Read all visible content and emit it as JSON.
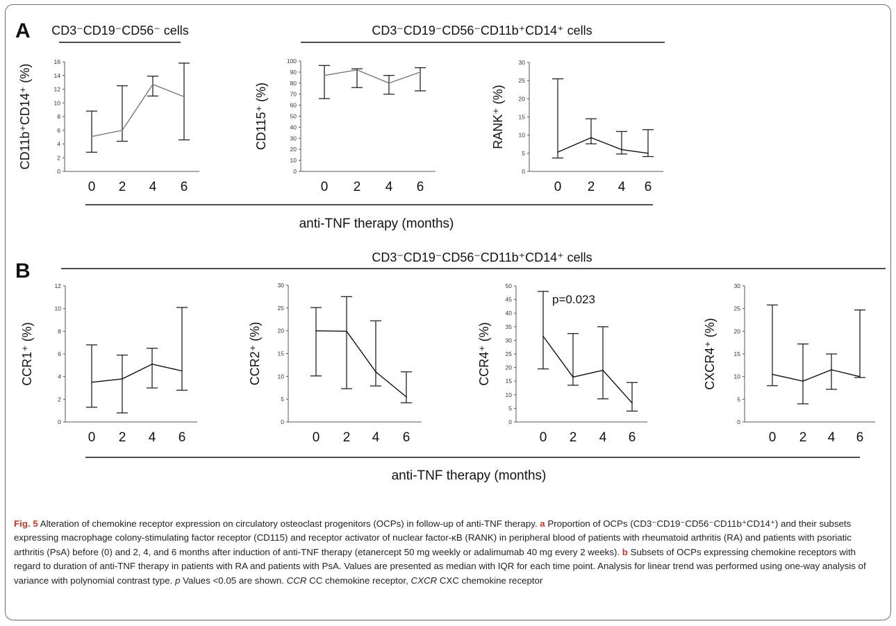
{
  "panels": {
    "a": {
      "letter": "A",
      "left_group_label": "CD3⁻CD19⁻CD56⁻ cells",
      "right_group_label": "CD3⁻CD19⁻CD56⁻CD11b⁺CD14⁺  cells",
      "xaxis_label": "anti-TNF therapy (months)"
    },
    "b": {
      "letter": "B",
      "group_label": "CD3⁻CD19⁻CD56⁻CD11b⁺CD14⁺  cells",
      "xaxis_label": "anti-TNF therapy (months)"
    }
  },
  "chart_data": [
    {
      "type": "line",
      "panel": "A",
      "ylabel": "CD11b⁺CD14⁺ (%)",
      "x": [
        0,
        2,
        4,
        6
      ],
      "xticks": [
        "0",
        "2",
        "4",
        "6"
      ],
      "ylim": [
        0,
        16
      ],
      "yticks": [
        0,
        2,
        4,
        6,
        8,
        10,
        12,
        14,
        16
      ],
      "median": [
        5.1,
        6.0,
        12.7,
        10.9
      ],
      "iqr_low": [
        2.8,
        4.4,
        11.0,
        4.6
      ],
      "iqr_high": [
        8.8,
        12.5,
        13.9,
        15.8
      ],
      "line_color": "#777777"
    },
    {
      "type": "line",
      "panel": "A",
      "ylabel": "CD115⁺ (%)",
      "x": [
        0,
        2,
        4,
        6
      ],
      "xticks": [
        "0",
        "2",
        "4",
        "6"
      ],
      "ylim": [
        0,
        100
      ],
      "yticks": [
        0,
        10,
        20,
        30,
        40,
        50,
        60,
        70,
        80,
        90,
        100
      ],
      "median": [
        87,
        92,
        80,
        90
      ],
      "iqr_low": [
        66,
        76,
        70,
        73
      ],
      "iqr_high": [
        96,
        93,
        87,
        94
      ],
      "line_color": "#777777"
    },
    {
      "type": "line",
      "panel": "A",
      "ylabel": "RANK⁺ (%)",
      "x": [
        0,
        2,
        4,
        6
      ],
      "xticks": [
        "0",
        "2",
        "4",
        "6"
      ],
      "ylim": [
        0,
        30
      ],
      "yticks": [
        0,
        5,
        10,
        15,
        20,
        25,
        30
      ],
      "median": [
        5.3,
        9.3,
        6.0,
        5.0
      ],
      "iqr_low": [
        3.7,
        7.6,
        4.8,
        4.1
      ],
      "iqr_high": [
        25.5,
        14.5,
        11.0,
        11.5
      ],
      "line_color": "#111111"
    },
    {
      "type": "line",
      "panel": "B",
      "ylabel": "CCR1⁺ (%)",
      "x": [
        0,
        2,
        4,
        6
      ],
      "xticks": [
        "0",
        "2",
        "4",
        "6"
      ],
      "ylim": [
        0,
        12
      ],
      "yticks": [
        0,
        2,
        4,
        6,
        8,
        10,
        12
      ],
      "median": [
        3.5,
        3.8,
        5.1,
        4.5
      ],
      "iqr_low": [
        1.3,
        0.8,
        3.0,
        2.8
      ],
      "iqr_high": [
        6.8,
        5.9,
        6.5,
        10.1
      ],
      "line_color": "#111111"
    },
    {
      "type": "line",
      "panel": "B",
      "ylabel": "CCR2⁺ (%)",
      "x": [
        0,
        2,
        4,
        6
      ],
      "xticks": [
        "0",
        "2",
        "4",
        "6"
      ],
      "ylim": [
        0,
        30
      ],
      "yticks": [
        0,
        5,
        10,
        15,
        20,
        25,
        30
      ],
      "median": [
        20.0,
        19.9,
        11.0,
        5.5
      ],
      "iqr_low": [
        10.1,
        7.3,
        7.9,
        4.2
      ],
      "iqr_high": [
        25.1,
        27.5,
        22.2,
        11.0
      ],
      "line_color": "#111111"
    },
    {
      "type": "line",
      "panel": "B",
      "ylabel": "CCR4⁺ (%)",
      "annotation": "p=0.023",
      "x": [
        0,
        2,
        4,
        6
      ],
      "xticks": [
        "0",
        "2",
        "4",
        "6"
      ],
      "ylim": [
        0,
        50
      ],
      "yticks": [
        0,
        5,
        10,
        15,
        20,
        25,
        30,
        35,
        40,
        45,
        50
      ],
      "median": [
        31.5,
        16.5,
        19.0,
        7.0
      ],
      "iqr_low": [
        19.5,
        13.5,
        8.5,
        4.0
      ],
      "iqr_high": [
        48.0,
        32.5,
        35.0,
        14.5
      ],
      "line_color": "#111111"
    },
    {
      "type": "line",
      "panel": "B",
      "ylabel": "CXCR4⁺ (%)",
      "x": [
        0,
        2,
        4,
        6
      ],
      "xticks": [
        "0",
        "2",
        "4",
        "6"
      ],
      "ylim": [
        0,
        30
      ],
      "yticks": [
        0,
        5,
        10,
        15,
        20,
        25,
        30
      ],
      "median": [
        10.5,
        9.0,
        11.5,
        10.0
      ],
      "iqr_low": [
        8.0,
        4.0,
        7.2,
        9.8
      ],
      "iqr_high": [
        25.8,
        17.2,
        15.0,
        24.7
      ],
      "line_color": "#111111"
    }
  ],
  "caption": {
    "fig_label": "Fig. 5",
    "intro": " Alteration of chemokine receptor expression on circulatory osteoclast progenitors (OCPs) in follow-up of anti-TNF therapy. ",
    "a_letter": "a",
    "a_text": " Proportion of OCPs (CD3⁻CD19⁻CD56⁻CD11b⁺CD14⁺) and their subsets expressing macrophage colony-stimulating factor receptor (CD115) and receptor activator of nuclear factor-κB (RANK) in peripheral blood of patients with rheumatoid arthritis (RA) and patients with psoriatic arthritis (PsA) before (0) and 2, 4, and 6 months after induction of anti-TNF therapy (etanercept 50 mg weekly or adalimumab 40 mg every 2 weeks). ",
    "b_letter": "b",
    "b_text": " Subsets of OCPs expressing chemokine receptors with regard to duration of anti-TNF therapy in patients with RA and patients with PsA. Values are presented as median with IQR for each time point. Analysis for linear trend was performed using one-way analysis of variance with polynomial contrast type. ",
    "p_italic": "p",
    "p_text": " Values <0.05 are shown. ",
    "ccr_italic": "CCR",
    "ccr_text": " CC chemokine receptor, ",
    "cxcr_italic": "CXCR",
    "cxcr_text": " CXC chemokine receptor"
  }
}
